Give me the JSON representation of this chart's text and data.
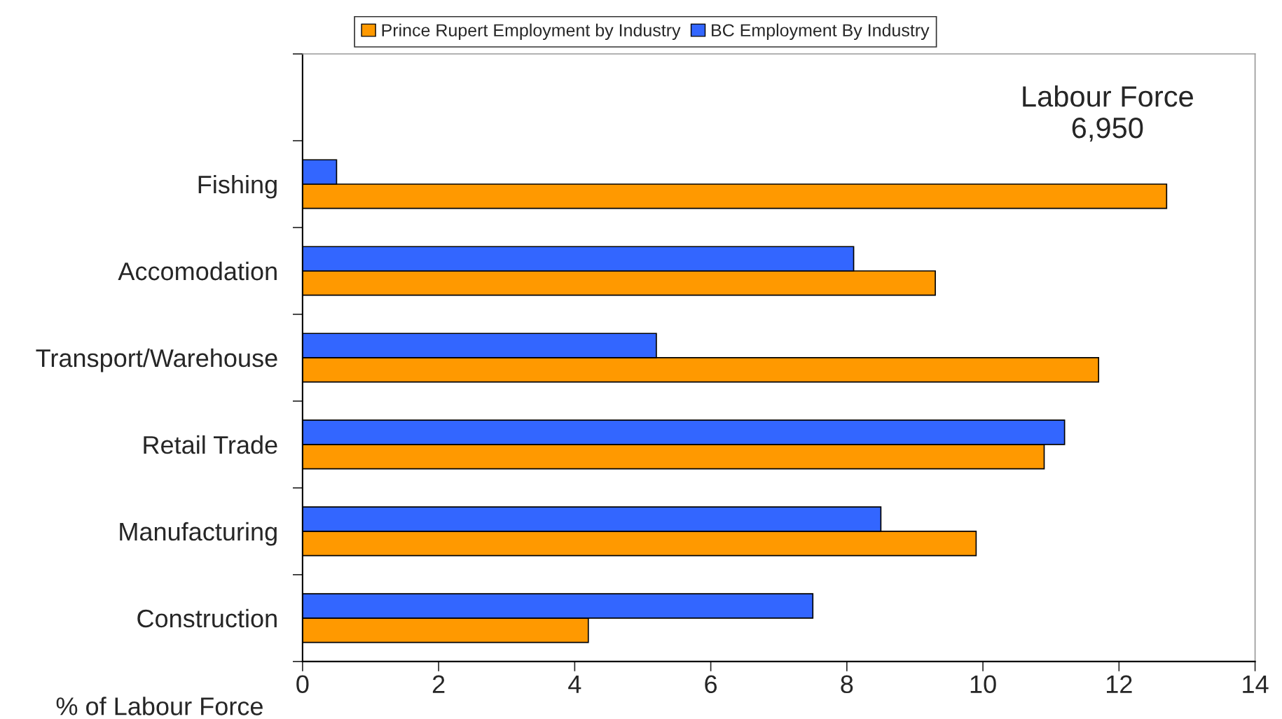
{
  "chart_data": {
    "type": "bar",
    "orientation": "horizontal",
    "categories": [
      null,
      "Fishing",
      "Accomodation",
      "Transport/Warehouse",
      "Retail Trade",
      "Manufacturing",
      "Construction"
    ],
    "series": [
      {
        "name": "Prince Rupert Employment by Industry",
        "color": "#ff9900",
        "values": [
          null,
          12.7,
          9.3,
          11.7,
          10.9,
          9.9,
          4.2
        ]
      },
      {
        "name": "BC Employment By Industry",
        "color": "#3366ff",
        "values": [
          null,
          0.5,
          8.1,
          5.2,
          11.2,
          8.5,
          7.5
        ]
      }
    ],
    "xlabel": "% of Labour Force",
    "xlim": [
      0,
      14
    ],
    "xticks": [
      0,
      2,
      4,
      6,
      8,
      10,
      12,
      14
    ],
    "annotations": [
      "Labour Force\n6,950"
    ],
    "legend": "top",
    "grid": false
  }
}
